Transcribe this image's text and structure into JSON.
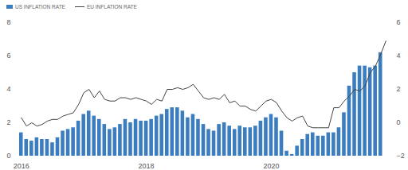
{
  "chart_data": {
    "type": "bar",
    "categories": [
      "2016",
      null,
      null,
      null,
      null,
      null,
      null,
      null,
      null,
      null,
      null,
      null,
      null,
      null,
      null,
      null,
      null,
      null,
      null,
      null,
      null,
      null,
      null,
      null,
      "2018",
      null,
      null,
      null,
      null,
      null,
      null,
      null,
      null,
      null,
      null,
      null,
      null,
      null,
      null,
      null,
      null,
      null,
      null,
      null,
      null,
      null,
      null,
      null,
      "2020",
      null,
      null,
      null,
      null,
      null,
      null,
      null,
      null,
      null,
      null,
      null,
      null,
      null,
      null,
      null,
      null,
      null,
      null,
      null,
      null,
      null,
      null
    ],
    "series": [
      {
        "name": "US INFLATION RATE",
        "type": "bar",
        "color": "#3b7dbf",
        "values": [
          1.4,
          1.0,
          0.9,
          1.1,
          1.0,
          1.0,
          0.8,
          1.1,
          1.5,
          1.6,
          1.7,
          2.1,
          2.5,
          2.7,
          2.4,
          2.2,
          1.9,
          1.6,
          1.7,
          1.9,
          2.2,
          2.0,
          2.2,
          2.1,
          2.1,
          2.2,
          2.4,
          2.5,
          2.8,
          2.9,
          2.9,
          2.7,
          2.3,
          2.5,
          2.2,
          1.9,
          1.6,
          1.5,
          1.9,
          2.0,
          1.8,
          1.6,
          1.8,
          1.7,
          1.7,
          1.8,
          2.1,
          2.3,
          2.5,
          2.3,
          1.5,
          0.3,
          0.1,
          0.6,
          1.0,
          1.3,
          1.4,
          1.2,
          1.2,
          1.4,
          1.4,
          1.7,
          2.6,
          4.2,
          5.0,
          5.4,
          5.4,
          5.3,
          5.4,
          6.2,
          null
        ]
      },
      {
        "name": "EU INFLATION RATE",
        "type": "line",
        "color": "#444444",
        "axis": "y2",
        "values": [
          0.3,
          -0.2,
          0.0,
          -0.2,
          -0.1,
          0.1,
          0.2,
          0.2,
          0.4,
          0.5,
          0.6,
          1.1,
          1.8,
          2.0,
          1.5,
          1.9,
          1.4,
          1.3,
          1.3,
          1.5,
          1.5,
          1.4,
          1.5,
          1.4,
          1.3,
          1.1,
          1.4,
          1.3,
          2.0,
          2.0,
          2.1,
          2.0,
          2.1,
          2.3,
          1.9,
          1.5,
          1.4,
          1.5,
          1.4,
          1.7,
          1.2,
          1.3,
          1.0,
          1.0,
          0.8,
          0.7,
          1.0,
          1.3,
          1.4,
          1.2,
          0.7,
          0.3,
          0.1,
          0.3,
          0.4,
          -0.2,
          -0.3,
          -0.3,
          -0.3,
          -0.3,
          0.9,
          0.9,
          1.3,
          1.6,
          2.0,
          1.9,
          2.2,
          3.0,
          3.4,
          4.1,
          4.9
        ]
      }
    ],
    "ylim": [
      0,
      8
    ],
    "yticks": [
      0,
      2,
      4,
      6,
      8
    ],
    "y2lim": [
      -2,
      6
    ],
    "y2ticks": [
      -2,
      0,
      2,
      4,
      6
    ],
    "legend": "top-left"
  }
}
